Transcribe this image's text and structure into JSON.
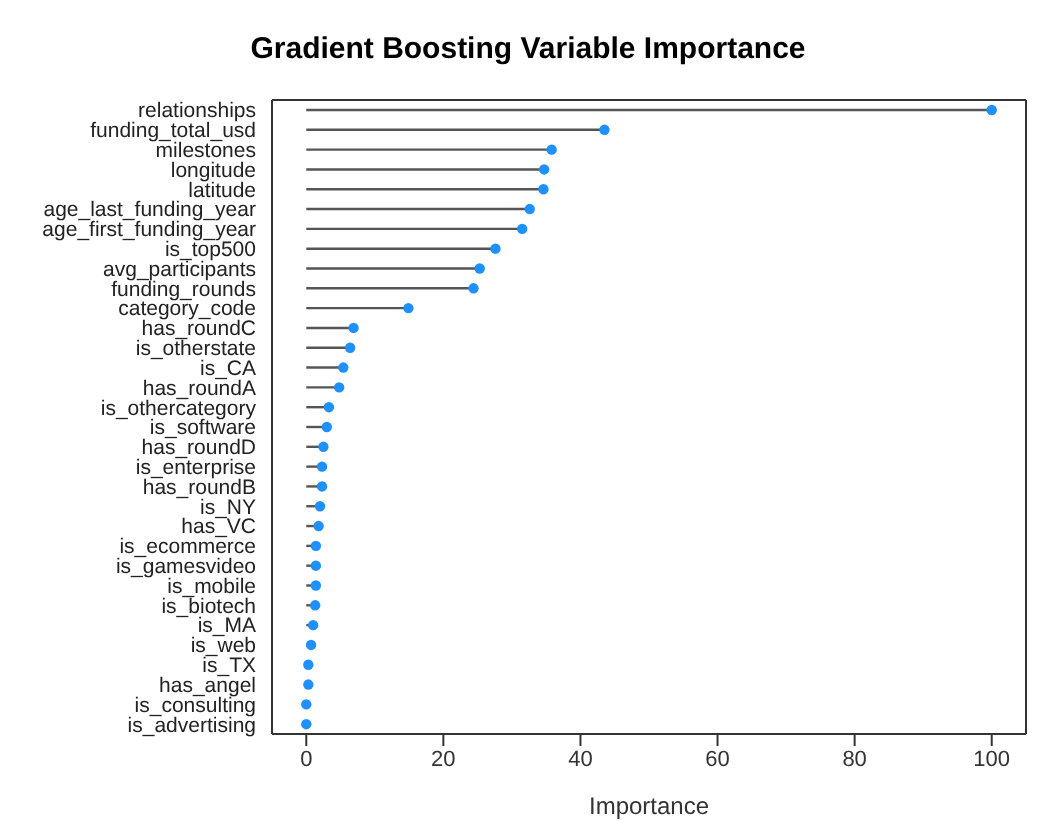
{
  "chart_data": {
    "type": "lollipop",
    "orientation": "horizontal",
    "title": "Gradient Boosting Variable Importance",
    "xlabel": "Importance",
    "categories": [
      "relationships",
      "funding_total_usd",
      "milestones",
      "longitude",
      "latitude",
      "age_last_funding_year",
      "age_first_funding_year",
      "is_top500",
      "avg_participants",
      "funding_rounds",
      "category_code",
      "has_roundC",
      "is_otherstate",
      "is_CA",
      "has_roundA",
      "is_othercategory",
      "is_software",
      "has_roundD",
      "is_enterprise",
      "has_roundB",
      "is_NY",
      "has_VC",
      "is_ecommerce",
      "is_gamesvideo",
      "is_mobile",
      "is_biotech",
      "is_MA",
      "is_web",
      "is_TX",
      "has_angel",
      "is_consulting",
      "is_advertising"
    ],
    "values": [
      100,
      43.5,
      35.8,
      34.7,
      34.6,
      32.6,
      31.5,
      27.6,
      25.3,
      24.4,
      14.9,
      6.9,
      6.4,
      5.4,
      4.8,
      3.3,
      3.0,
      2.5,
      2.3,
      2.3,
      2.0,
      1.8,
      1.4,
      1.4,
      1.4,
      1.3,
      1.0,
      0.7,
      0.3,
      0.3,
      0,
      0
    ],
    "color": "#1e90ff",
    "marker": "circle",
    "xlim": [
      -5,
      105
    ],
    "xticks": [
      0,
      20,
      40,
      60,
      80,
      100
    ]
  }
}
